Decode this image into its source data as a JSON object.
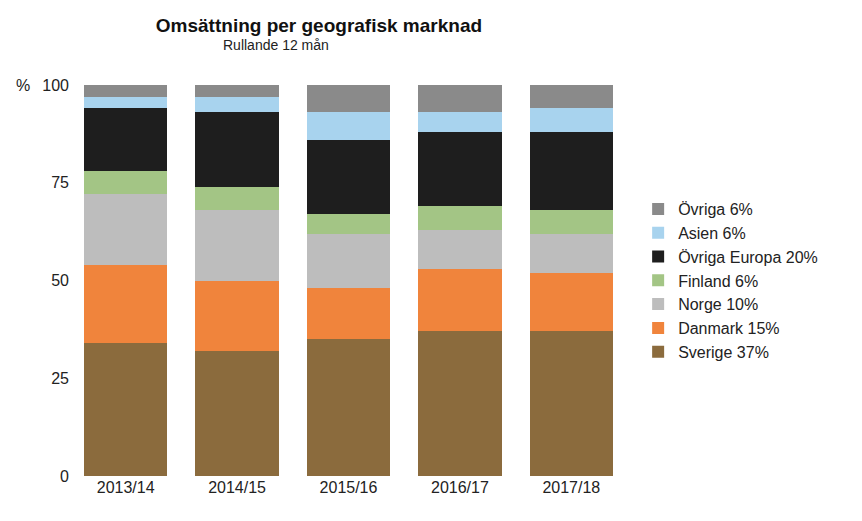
{
  "chart_data": {
    "type": "bar",
    "title": "Omsättning per geografisk marknad",
    "subtitle": "Rullande 12 mån",
    "ylabel": "%",
    "stacked": true,
    "grid": false,
    "legend": "right",
    "categories": [
      "2013/14",
      "2014/15",
      "2015/16",
      "2016/17",
      "2017/18"
    ],
    "ylim": [
      0,
      100
    ],
    "yticks": [
      0,
      25,
      50,
      75,
      100
    ],
    "series": [
      {
        "name": "Sverige 37%",
        "color": "#8b6b3d",
        "values": [
          34,
          32,
          35,
          37,
          37
        ]
      },
      {
        "name": "Danmark 15%",
        "color": "#f0843c",
        "values": [
          20,
          18,
          13,
          16,
          15
        ]
      },
      {
        "name": "Norge 10%",
        "color": "#bdbdbd",
        "values": [
          18,
          18,
          14,
          10,
          10
        ]
      },
      {
        "name": "Finland 6%",
        "color": "#a3c585",
        "values": [
          6,
          6,
          5,
          6,
          6
        ]
      },
      {
        "name": "Övriga Europa 20%",
        "color": "#1e1e1e",
        "values": [
          16,
          19,
          19,
          19,
          20
        ]
      },
      {
        "name": "Asien 6%",
        "color": "#a8d3ee",
        "values": [
          3,
          4,
          7,
          5,
          6
        ]
      },
      {
        "name": "Övriga 6%",
        "color": "#8a8a8a",
        "values": [
          3,
          3,
          7,
          7,
          6
        ]
      }
    ]
  }
}
